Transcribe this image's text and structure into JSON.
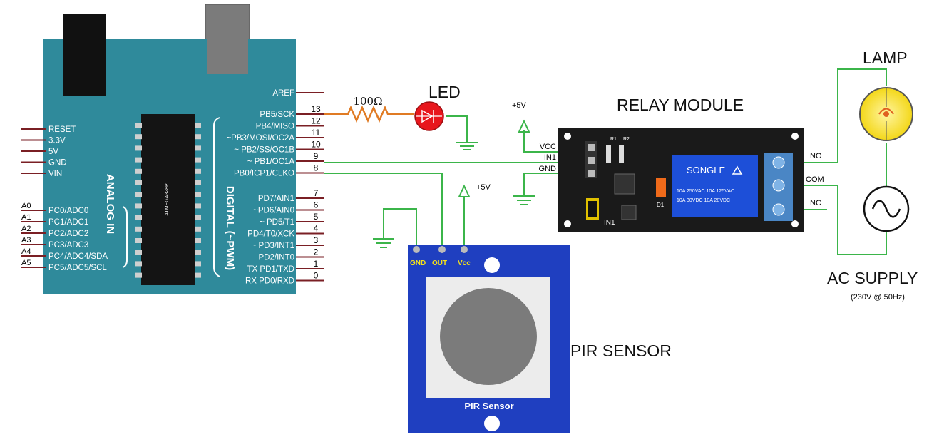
{
  "arduino": {
    "aref_label": "AREF",
    "chip_label": "ATMEGA328P",
    "analog_title": "ANALOG IN",
    "digital_title": "DIGITAL (~PWM)",
    "left_power_pins": [
      "RESET",
      "3.3V",
      "5V",
      "GND",
      "VIN"
    ],
    "analog_pins": [
      {
        "id": "A0",
        "name": "PC0/ADC0"
      },
      {
        "id": "A1",
        "name": "PC1/ADC1"
      },
      {
        "id": "A2",
        "name": "PC2/ADC2"
      },
      {
        "id": "A3",
        "name": "PC3/ADC3"
      },
      {
        "id": "A4",
        "name": "PC4/ADC4/SDA"
      },
      {
        "id": "A5",
        "name": "PC5/ADC5/SCL"
      }
    ],
    "digital_pins_upper": [
      {
        "num": "13",
        "name": "PB5/SCK"
      },
      {
        "num": "12",
        "name": "PB4/MISO"
      },
      {
        "num": "11",
        "name": "~PB3/MOSI/OC2A"
      },
      {
        "num": "10",
        "name": "~ PB2/SS/OC1B"
      },
      {
        "num": "9",
        "name": "~ PB1/OC1A"
      },
      {
        "num": "8",
        "name": "PB0/ICP1/CLKO"
      }
    ],
    "digital_pins_lower": [
      {
        "num": "7",
        "name": "PD7/AIN1"
      },
      {
        "num": "6",
        "name": "~PD6/AIN0"
      },
      {
        "num": "5",
        "name": "~ PD5/T1"
      },
      {
        "num": "4",
        "name": "PD4/T0/XCK"
      },
      {
        "num": "3",
        "name": "~ PD3/INT1"
      },
      {
        "num": "2",
        "name": "PD2/INT0"
      },
      {
        "num": "1",
        "name": "TX  PD1/TXD"
      },
      {
        "num": "0",
        "name": "RX  PD0/RXD"
      }
    ]
  },
  "resistor": {
    "label": "100Ω"
  },
  "led": {
    "label": "LED"
  },
  "supply_labels": {
    "vcc_relay": "+5V",
    "vcc_pir": "+5V"
  },
  "relay": {
    "title": "RELAY MODULE",
    "input_pins": [
      "VCC",
      "IN1",
      "GND"
    ],
    "output_pins": [
      "NO",
      "COM",
      "NC"
    ],
    "relay_brand": "SONGLE",
    "relay_ratings": [
      "10A  250VAC   10A 125VAC",
      "10A  30VDC   10A 28VDC"
    ],
    "board_labels": [
      "R1",
      "R2",
      "D1",
      "IN1"
    ]
  },
  "pir": {
    "title": "PIR SENSOR",
    "board_label": "PIR Sensor",
    "pins": [
      "GND",
      "OUT",
      "Vcc"
    ]
  },
  "lamp": {
    "label": "LAMP"
  },
  "ac": {
    "label": "AC SUPPLY",
    "sublabel": "(230V @ 50Hz)"
  },
  "colors": {
    "arduino_board": "#2f8a9b",
    "relay_board": "#1a1a1a",
    "pir_board": "#1f3fc0",
    "wire_green": "#3bb54a",
    "pin_dark_red": "#7a1f24",
    "led_red": "#e8161c",
    "lamp_yellow": "#f7e21b"
  }
}
